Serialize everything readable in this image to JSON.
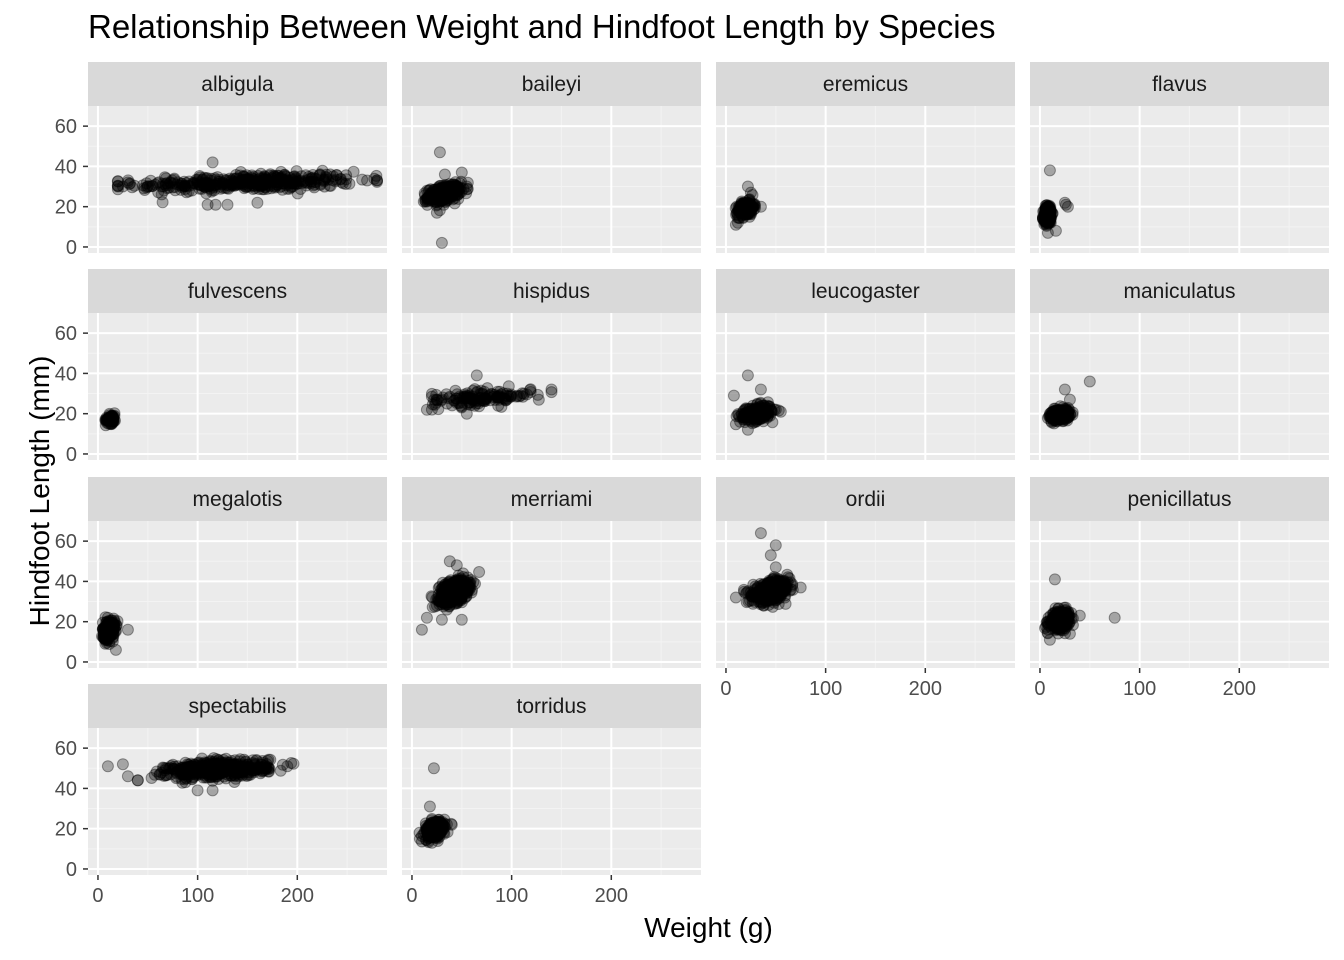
{
  "chart_data": {
    "type": "scatter",
    "title": "Relationship Between Weight and Hindfoot Length by Species",
    "xlabel": "Weight (g)",
    "ylabel": "Hindfoot Length (mm)",
    "facet_layout": "wrap-4-columns",
    "xlim": [
      -10,
      290
    ],
    "ylim": [
      -3,
      70
    ],
    "x_ticks": [
      0,
      100,
      200
    ],
    "y_ticks": [
      0,
      20,
      40,
      60
    ],
    "grid": true,
    "point_color": "#000000",
    "point_alpha": 0.3,
    "panel_background": "#ebebeb",
    "strip_background": "#d9d9d9",
    "facets": [
      {
        "name": "albigula",
        "clusters": [
          {
            "cx": 150,
            "cy": 32,
            "sx": 55,
            "sy": 2.2,
            "n": 400,
            "xmin": 20,
            "xmax": 280,
            "corr": 0.3
          }
        ],
        "points": [
          [
            115,
            42
          ],
          [
            110,
            21
          ],
          [
            118,
            21
          ],
          [
            130,
            21
          ],
          [
            160,
            22
          ],
          [
            25,
            30
          ],
          [
            30,
            32
          ],
          [
            20,
            30
          ],
          [
            270,
            33
          ],
          [
            280,
            33
          ]
        ]
      },
      {
        "name": "baileyi",
        "clusters": [
          {
            "cx": 32,
            "cy": 26.5,
            "sx": 8,
            "sy": 2.2,
            "n": 300,
            "xmin": 10,
            "xmax": 60,
            "corr": 0.4
          }
        ],
        "points": [
          [
            28,
            47
          ],
          [
            30,
            2
          ],
          [
            50,
            37
          ],
          [
            33,
            36
          ],
          [
            25,
            17
          ],
          [
            55,
            30
          ]
        ]
      },
      {
        "name": "eremicus",
        "clusters": [
          {
            "cx": 20,
            "cy": 19,
            "sx": 4,
            "sy": 1.8,
            "n": 250,
            "xmin": 5,
            "xmax": 40,
            "corr": 0.3
          }
        ],
        "points": [
          [
            22,
            30
          ],
          [
            10,
            11
          ],
          [
            12,
            12
          ],
          [
            25,
            27
          ],
          [
            35,
            20
          ]
        ]
      },
      {
        "name": "flavus",
        "clusters": [
          {
            "cx": 8,
            "cy": 16,
            "sx": 2,
            "sy": 2.5,
            "n": 200,
            "xmin": 3,
            "xmax": 18,
            "corr": 0.2
          }
        ],
        "points": [
          [
            10,
            38
          ],
          [
            25,
            22
          ],
          [
            28,
            20
          ],
          [
            16,
            8
          ],
          [
            8,
            7
          ],
          [
            26,
            21
          ]
        ]
      },
      {
        "name": "fulvescens",
        "clusters": [
          {
            "cx": 13,
            "cy": 17.5,
            "sx": 2.5,
            "sy": 1.2,
            "n": 70,
            "xmin": 7,
            "xmax": 20,
            "corr": 0.2
          }
        ],
        "points": []
      },
      {
        "name": "hispidus",
        "clusters": [
          {
            "cx": 70,
            "cy": 28,
            "sx": 25,
            "sy": 2,
            "n": 140,
            "xmin": 20,
            "xmax": 140,
            "corr": 0.3
          }
        ],
        "points": [
          [
            65,
            39
          ],
          [
            15,
            22
          ],
          [
            55,
            20
          ],
          [
            140,
            32
          ],
          [
            25,
            27
          ]
        ]
      },
      {
        "name": "leucogaster",
        "clusters": [
          {
            "cx": 30,
            "cy": 20,
            "sx": 8,
            "sy": 2,
            "n": 220,
            "xmin": 10,
            "xmax": 55,
            "corr": 0.3
          }
        ],
        "points": [
          [
            22,
            39
          ],
          [
            35,
            32
          ],
          [
            8,
            29
          ],
          [
            22,
            12
          ],
          [
            55,
            21
          ]
        ]
      },
      {
        "name": "maniculatus",
        "clusters": [
          {
            "cx": 20,
            "cy": 19.5,
            "sx": 5,
            "sy": 1.5,
            "n": 220,
            "xmin": 8,
            "xmax": 40,
            "corr": 0.3
          }
        ],
        "points": [
          [
            50,
            36
          ],
          [
            25,
            32
          ],
          [
            30,
            27
          ]
        ]
      },
      {
        "name": "megalotis",
        "clusters": [
          {
            "cx": 11,
            "cy": 16,
            "sx": 3,
            "sy": 2.5,
            "n": 220,
            "xmin": 4,
            "xmax": 25,
            "corr": 0.2
          }
        ],
        "points": [
          [
            30,
            16
          ],
          [
            18,
            6
          ],
          [
            10,
            22
          ]
        ]
      },
      {
        "name": "merriami",
        "clusters": [
          {
            "cx": 42,
            "cy": 35,
            "sx": 7,
            "sy": 2.8,
            "n": 600,
            "xmin": 15,
            "xmax": 70,
            "corr": 0.4
          }
        ],
        "points": [
          [
            10,
            16
          ],
          [
            15,
            22
          ],
          [
            30,
            21
          ],
          [
            38,
            50
          ],
          [
            45,
            48
          ],
          [
            50,
            21
          ],
          [
            25,
            28
          ],
          [
            35,
            26
          ]
        ]
      },
      {
        "name": "ordii",
        "clusters": [
          {
            "cx": 45,
            "cy": 35,
            "sx": 9,
            "sy": 2.5,
            "n": 500,
            "xmin": 15,
            "xmax": 80,
            "corr": 0.4
          }
        ],
        "points": [
          [
            35,
            64
          ],
          [
            50,
            58
          ],
          [
            45,
            53
          ],
          [
            50,
            47
          ],
          [
            75,
            37
          ],
          [
            10,
            32
          ],
          [
            38,
            28
          ]
        ]
      },
      {
        "name": "penicillatus",
        "clusters": [
          {
            "cx": 20,
            "cy": 21,
            "sx": 5,
            "sy": 2.2,
            "n": 300,
            "xmin": 5,
            "xmax": 45,
            "corr": 0.3
          }
        ],
        "points": [
          [
            15,
            41
          ],
          [
            75,
            22
          ],
          [
            10,
            11
          ],
          [
            40,
            23
          ],
          [
            30,
            14
          ]
        ]
      },
      {
        "name": "spectabilis",
        "clusters": [
          {
            "cx": 120,
            "cy": 49.5,
            "sx": 25,
            "sy": 2.2,
            "n": 500,
            "xmin": 40,
            "xmax": 200,
            "corr": 0.3
          }
        ],
        "points": [
          [
            10,
            51
          ],
          [
            25,
            52
          ],
          [
            30,
            46
          ],
          [
            100,
            39
          ],
          [
            115,
            39
          ],
          [
            190,
            51
          ],
          [
            40,
            44
          ]
        ]
      },
      {
        "name": "torridus",
        "clusters": [
          {
            "cx": 23,
            "cy": 19.5,
            "sx": 5,
            "sy": 2.2,
            "n": 280,
            "xmin": 5,
            "xmax": 45,
            "corr": 0.3
          }
        ],
        "points": [
          [
            22,
            50
          ],
          [
            18,
            31
          ],
          [
            40,
            22
          ],
          [
            8,
            15
          ],
          [
            20,
            13
          ]
        ]
      }
    ]
  }
}
